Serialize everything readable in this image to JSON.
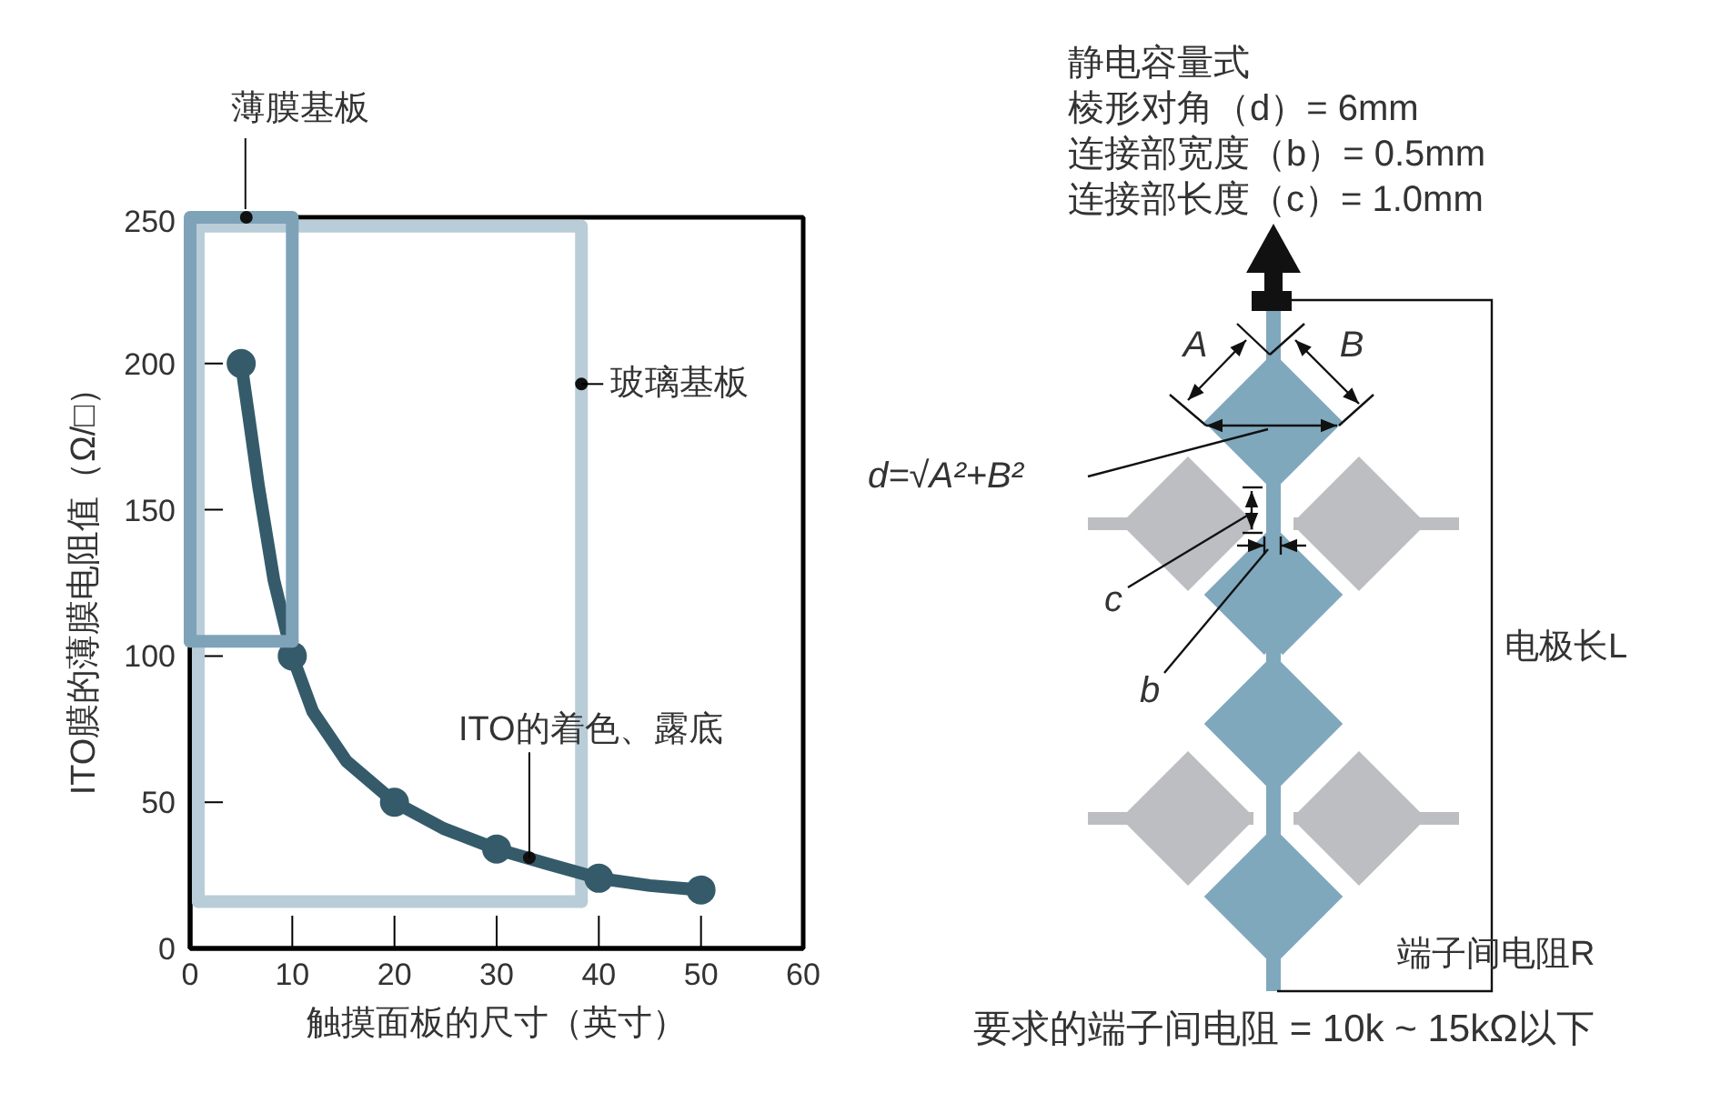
{
  "chart_data": [
    {
      "type": "line",
      "xlabel": "触摸面板的尺寸（英寸）",
      "ylabel": "ITO膜的薄膜电阻值（Ω/□）",
      "xlim": [
        0,
        60
      ],
      "ylim": [
        0,
        250
      ],
      "xticks": [
        0,
        10,
        20,
        30,
        40,
        50,
        60
      ],
      "yticks": [
        0,
        50,
        100,
        150,
        200,
        250
      ],
      "line_style": "solid",
      "series": [
        {
          "color": "#b9cdd8",
          "x": [
            0.8,
            0.8,
            38.3,
            38.3
          ],
          "values": [
            16,
            247,
            247,
            16
          ],
          "marker": "none"
        },
        {
          "color": "#b9cdd8",
          "x": [
            0.8,
            38.3
          ],
          "values": [
            16,
            16
          ],
          "marker": "none"
        },
        {
          "color": "#355b6b",
          "x": [
            5,
            5.9,
            6.7,
            8.2,
            10,
            12,
            15.3,
            20,
            24.8,
            30,
            34.9,
            40,
            45,
            50
          ],
          "values": [
            200,
            178,
            158,
            126,
            100,
            81,
            64,
            50,
            41,
            34,
            29,
            24,
            21.5,
            20
          ],
          "marker": "none"
        },
        {
          "type": "scatter",
          "color": "#355b6b",
          "x": [
            5,
            10,
            20,
            30,
            40,
            50
          ],
          "values": [
            200,
            100,
            50,
            34,
            24,
            20
          ],
          "marker": "circle"
        },
        {
          "color": "#7ea3b8",
          "x": [
            0,
            0,
            10,
            10
          ],
          "values": [
            105,
            250,
            250,
            105
          ],
          "marker": "none"
        },
        {
          "color": "#7ea3b8",
          "x": [
            0,
            10
          ],
          "values": [
            105,
            105
          ],
          "marker": "none"
        }
      ],
      "annotations": [
        {
          "text": "薄膜基板",
          "x": 5.5,
          "y": 250
        },
        {
          "text": "玻璃基板",
          "x": 38.3,
          "y": 193
        },
        {
          "text": "ITO的着色、露底",
          "x": 33.2,
          "y": 31
        }
      ]
    },
    {
      "type": "other",
      "title": "静电容量式",
      "annotations": [
        "棱形对角（d）= 6mm",
        "连接部宽度（b）= 0.5mm",
        "连接部长度（c）= 1.0mm",
        "A",
        "B",
        "d=√A²+B²",
        "c",
        "b",
        "电极长L",
        "端子间电阻R",
        "要求的端子间电阻 = 10k ~ 15kΩ以下"
      ]
    }
  ]
}
